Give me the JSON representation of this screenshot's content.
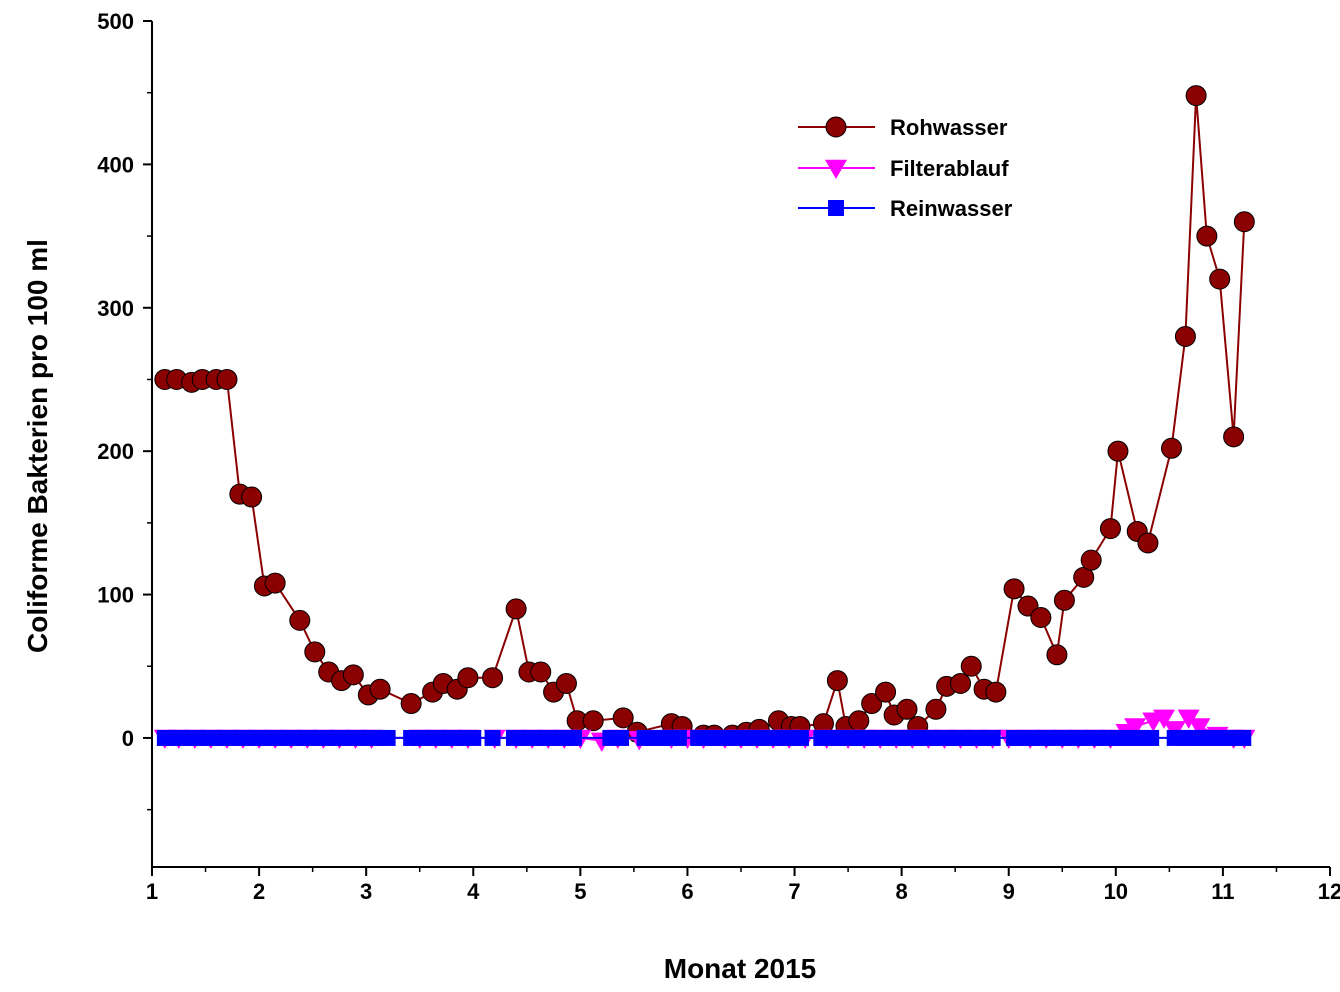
{
  "chart_data": {
    "type": "line",
    "title": "",
    "xlabel": "Monat 2015",
    "ylabel": "Coliforme Bakterien pro 100 ml",
    "xlim": [
      1,
      12
    ],
    "ylim": [
      -90,
      500
    ],
    "xticks": [
      "1",
      "2",
      "3",
      "4",
      "5",
      "6",
      "7",
      "8",
      "9",
      "10",
      "11",
      "12"
    ],
    "yticks": [
      "0",
      "100",
      "200",
      "300",
      "400",
      "500"
    ],
    "legend": "top-right",
    "series": [
      {
        "name": "Rohwasser",
        "color": "#8b0000",
        "marker": "circle",
        "points": [
          [
            1.12,
            250
          ],
          [
            1.23,
            250
          ],
          [
            1.37,
            248
          ],
          [
            1.47,
            250
          ],
          [
            1.6,
            250
          ],
          [
            1.7,
            250
          ],
          [
            1.82,
            170
          ],
          [
            1.93,
            168
          ],
          [
            2.05,
            106
          ],
          [
            2.15,
            108
          ],
          [
            2.38,
            82
          ],
          [
            2.52,
            60
          ],
          [
            2.65,
            46
          ],
          [
            2.77,
            40
          ],
          [
            2.88,
            44
          ],
          [
            3.02,
            30
          ],
          [
            3.13,
            34
          ],
          [
            3.42,
            24
          ],
          [
            3.62,
            32
          ],
          [
            3.72,
            38
          ],
          [
            3.85,
            34
          ],
          [
            3.95,
            42
          ],
          [
            4.18,
            42
          ],
          [
            4.4,
            90
          ],
          [
            4.52,
            46
          ],
          [
            4.63,
            46
          ],
          [
            4.75,
            32
          ],
          [
            4.87,
            38
          ],
          [
            4.97,
            12
          ],
          [
            5.12,
            12
          ],
          [
            5.4,
            14
          ],
          [
            5.53,
            4
          ],
          [
            5.85,
            10
          ],
          [
            5.95,
            8
          ],
          [
            6.15,
            2
          ],
          [
            6.25,
            2
          ],
          [
            6.42,
            2
          ],
          [
            6.55,
            4
          ],
          [
            6.67,
            6
          ],
          [
            6.85,
            12
          ],
          [
            6.97,
            8
          ],
          [
            7.05,
            8
          ],
          [
            7.27,
            10
          ],
          [
            7.4,
            40
          ],
          [
            7.48,
            8
          ],
          [
            7.6,
            12
          ],
          [
            7.72,
            24
          ],
          [
            7.85,
            32
          ],
          [
            7.93,
            16
          ],
          [
            8.05,
            20
          ],
          [
            8.15,
            8
          ],
          [
            8.32,
            20
          ],
          [
            8.42,
            36
          ],
          [
            8.55,
            38
          ],
          [
            8.65,
            50
          ],
          [
            8.77,
            34
          ],
          [
            8.88,
            32
          ],
          [
            9.05,
            104
          ],
          [
            9.18,
            92
          ],
          [
            9.3,
            84
          ],
          [
            9.45,
            58
          ],
          [
            9.52,
            96
          ],
          [
            9.7,
            112
          ],
          [
            9.77,
            124
          ],
          [
            9.95,
            146
          ],
          [
            10.02,
            200
          ],
          [
            10.2,
            144
          ],
          [
            10.3,
            136
          ],
          [
            10.52,
            202
          ],
          [
            10.65,
            280
          ],
          [
            10.75,
            448
          ],
          [
            10.85,
            350
          ],
          [
            10.97,
            320
          ],
          [
            11.1,
            210
          ],
          [
            11.2,
            360
          ]
        ]
      },
      {
        "name": "Filterablauf",
        "color": "#ff00ff",
        "marker": "triangle-down",
        "points": [
          [
            1.12,
            0
          ],
          [
            1.25,
            0
          ],
          [
            1.4,
            0
          ],
          [
            1.55,
            0
          ],
          [
            1.7,
            0
          ],
          [
            1.85,
            0
          ],
          [
            2.0,
            0
          ],
          [
            2.15,
            0
          ],
          [
            2.3,
            0
          ],
          [
            2.45,
            0
          ],
          [
            2.6,
            0
          ],
          [
            2.75,
            0
          ],
          [
            2.9,
            0
          ],
          [
            3.05,
            0
          ],
          [
            3.5,
            0
          ],
          [
            3.65,
            0
          ],
          [
            3.8,
            0
          ],
          [
            3.95,
            0
          ],
          [
            4.2,
            0
          ],
          [
            4.4,
            0
          ],
          [
            4.55,
            0
          ],
          [
            4.7,
            0
          ],
          [
            4.85,
            0
          ],
          [
            5.0,
            0
          ],
          [
            5.2,
            -2
          ],
          [
            5.35,
            0
          ],
          [
            5.55,
            -1
          ],
          [
            5.85,
            0
          ],
          [
            6.0,
            0
          ],
          [
            6.15,
            0
          ],
          [
            6.35,
            0
          ],
          [
            6.5,
            0
          ],
          [
            6.65,
            0
          ],
          [
            6.8,
            0
          ],
          [
            6.95,
            0
          ],
          [
            7.1,
            0
          ],
          [
            7.3,
            0
          ],
          [
            7.5,
            0
          ],
          [
            7.65,
            0
          ],
          [
            7.8,
            0
          ],
          [
            7.95,
            0
          ],
          [
            8.1,
            0
          ],
          [
            8.25,
            0
          ],
          [
            8.4,
            0
          ],
          [
            8.55,
            0
          ],
          [
            8.7,
            0
          ],
          [
            8.85,
            0
          ],
          [
            9.0,
            0
          ],
          [
            9.2,
            0
          ],
          [
            9.35,
            0
          ],
          [
            9.5,
            0
          ],
          [
            9.65,
            0
          ],
          [
            9.8,
            0
          ],
          [
            9.95,
            0
          ],
          [
            10.1,
            4
          ],
          [
            10.18,
            8
          ],
          [
            10.35,
            12
          ],
          [
            10.45,
            14
          ],
          [
            10.55,
            6
          ],
          [
            10.68,
            14
          ],
          [
            10.78,
            8
          ],
          [
            10.95,
            2
          ],
          [
            11.1,
            0
          ],
          [
            11.2,
            0
          ]
        ]
      },
      {
        "name": "Reinwasser",
        "color": "#0000ff",
        "marker": "square",
        "points": [
          [
            1.12,
            0
          ],
          [
            1.2,
            0
          ],
          [
            1.28,
            0
          ],
          [
            1.36,
            0
          ],
          [
            1.44,
            0
          ],
          [
            1.52,
            0
          ],
          [
            1.6,
            0
          ],
          [
            1.68,
            0
          ],
          [
            1.76,
            0
          ],
          [
            1.84,
            0
          ],
          [
            1.92,
            0
          ],
          [
            2.0,
            0
          ],
          [
            2.08,
            0
          ],
          [
            2.16,
            0
          ],
          [
            2.24,
            0
          ],
          [
            2.32,
            0
          ],
          [
            2.4,
            0
          ],
          [
            2.48,
            0
          ],
          [
            2.56,
            0
          ],
          [
            2.64,
            0
          ],
          [
            2.72,
            0
          ],
          [
            2.8,
            0
          ],
          [
            2.88,
            0
          ],
          [
            2.96,
            0
          ],
          [
            3.04,
            0
          ],
          [
            3.12,
            0
          ],
          [
            3.2,
            0
          ],
          [
            3.42,
            0
          ],
          [
            3.5,
            0
          ],
          [
            3.58,
            0
          ],
          [
            3.66,
            0
          ],
          [
            3.74,
            0
          ],
          [
            3.82,
            0
          ],
          [
            3.9,
            0
          ],
          [
            4.0,
            0
          ],
          [
            4.18,
            0
          ],
          [
            4.38,
            0
          ],
          [
            4.46,
            0
          ],
          [
            4.54,
            0
          ],
          [
            4.62,
            0
          ],
          [
            4.7,
            0
          ],
          [
            4.78,
            0
          ],
          [
            4.86,
            0
          ],
          [
            4.94,
            0
          ],
          [
            5.28,
            0
          ],
          [
            5.38,
            0
          ],
          [
            5.6,
            0
          ],
          [
            5.68,
            0
          ],
          [
            5.76,
            0
          ],
          [
            5.84,
            0
          ],
          [
            5.92,
            0
          ],
          [
            6.1,
            0
          ],
          [
            6.18,
            0
          ],
          [
            6.26,
            0
          ],
          [
            6.34,
            0
          ],
          [
            6.42,
            0
          ],
          [
            6.5,
            0
          ],
          [
            6.58,
            0
          ],
          [
            6.66,
            0
          ],
          [
            6.74,
            0
          ],
          [
            6.82,
            0
          ],
          [
            6.9,
            0
          ],
          [
            6.98,
            0
          ],
          [
            7.06,
            0
          ],
          [
            7.25,
            0
          ],
          [
            7.33,
            0
          ],
          [
            7.41,
            0
          ],
          [
            7.49,
            0
          ],
          [
            7.57,
            0
          ],
          [
            7.65,
            0
          ],
          [
            7.73,
            0
          ],
          [
            7.81,
            0
          ],
          [
            7.89,
            0
          ],
          [
            7.97,
            0
          ],
          [
            8.05,
            0
          ],
          [
            8.13,
            0
          ],
          [
            8.21,
            0
          ],
          [
            8.29,
            0
          ],
          [
            8.37,
            0
          ],
          [
            8.45,
            0
          ],
          [
            8.53,
            0
          ],
          [
            8.61,
            0
          ],
          [
            8.69,
            0
          ],
          [
            8.77,
            0
          ],
          [
            8.85,
            0
          ],
          [
            9.05,
            0
          ],
          [
            9.13,
            0
          ],
          [
            9.21,
            0
          ],
          [
            9.29,
            0
          ],
          [
            9.37,
            0
          ],
          [
            9.45,
            0
          ],
          [
            9.53,
            0
          ],
          [
            9.61,
            0
          ],
          [
            9.69,
            0
          ],
          [
            9.77,
            0
          ],
          [
            9.85,
            0
          ],
          [
            9.93,
            0
          ],
          [
            10.01,
            0
          ],
          [
            10.09,
            0
          ],
          [
            10.17,
            0
          ],
          [
            10.25,
            0
          ],
          [
            10.33,
            0
          ],
          [
            10.55,
            0
          ],
          [
            10.63,
            0
          ],
          [
            10.71,
            0
          ],
          [
            10.79,
            0
          ],
          [
            10.87,
            0
          ],
          [
            10.95,
            0
          ],
          [
            11.03,
            0
          ],
          [
            11.11,
            0
          ],
          [
            11.19,
            0
          ]
        ]
      }
    ]
  }
}
